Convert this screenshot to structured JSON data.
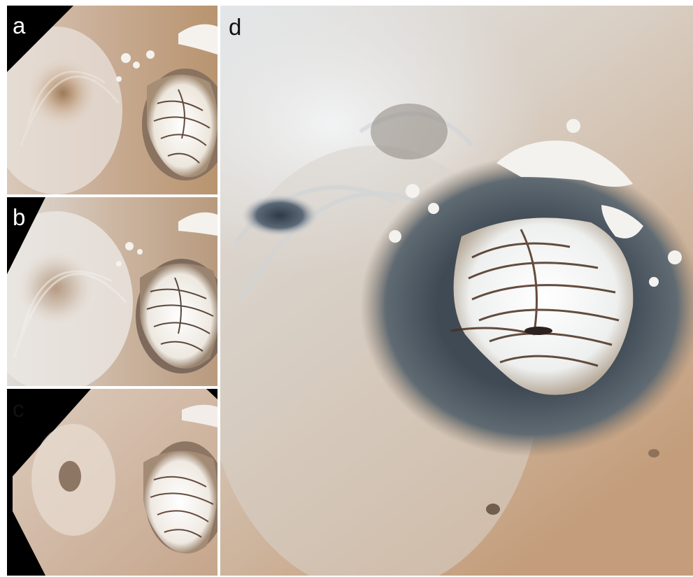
{
  "figure": {
    "panels": [
      {
        "label": "a"
      },
      {
        "label": "b"
      },
      {
        "label": "c"
      },
      {
        "label": "d"
      }
    ]
  },
  "colors": {
    "haze": "#e3e6e8",
    "dust": "#c9a98a",
    "ice": "#f3f1ec",
    "dark_ring": "#3f4a55",
    "trough": "#4a2e1e",
    "frame": "#000000"
  }
}
